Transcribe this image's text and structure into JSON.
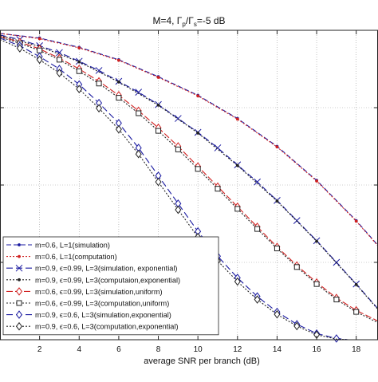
{
  "chart_data": {
    "type": "line",
    "title": "M=4, Γ_p/Γ_s=-5 dB",
    "title_parts": {
      "lead": "M=4, Γ",
      "sub1": "p",
      "mid": "/Γ",
      "sub2": "s",
      "tail": "=-5 dB"
    },
    "xlabel": "average SNR per branch (dB)",
    "ylabel": "",
    "xlim": [
      0,
      19.1
    ],
    "ylim": [
      0,
      1
    ],
    "y_scale_note": "y tick labels not visible in crop; vertical position normalized 0 (bottom) to 1 (top)",
    "x_ticks": [
      2,
      4,
      6,
      8,
      10,
      12,
      14,
      16,
      18
    ],
    "y_gridlines": [
      0.25,
      0.5,
      0.75
    ],
    "grid": true,
    "legend_position": "bottom-left",
    "series": [
      {
        "name": "m=0.6, L=1(simulation)",
        "color": "#1a1aa0",
        "dash": "6,3",
        "marker": "dot",
        "x": [
          0,
          2,
          4,
          6,
          8,
          10,
          12,
          14,
          16,
          18,
          19.1
        ],
        "y": [
          0.99,
          0.975,
          0.945,
          0.905,
          0.85,
          0.79,
          0.715,
          0.625,
          0.515,
          0.385,
          0.305
        ]
      },
      {
        "name": "m=0.6, L=1(computation)",
        "color": "#d02020",
        "dash": "2,2",
        "marker": "dot",
        "x": [
          0,
          2,
          4,
          6,
          8,
          10,
          12,
          14,
          16,
          18,
          19.1
        ],
        "y": [
          0.99,
          0.973,
          0.943,
          0.903,
          0.848,
          0.788,
          0.713,
          0.623,
          0.513,
          0.383,
          0.303
        ]
      },
      {
        "name": "m=0.9, ϵ=0.99, L=3(simulation, exponential)",
        "color": "#1a1aa0",
        "dash": "8,4",
        "marker": "x",
        "x": [
          0,
          1,
          2,
          3,
          4,
          5,
          6,
          7,
          8,
          9,
          10,
          11,
          12,
          13,
          14,
          15,
          16,
          17,
          18,
          19.1
        ],
        "y": [
          0.985,
          0.97,
          0.95,
          0.928,
          0.9,
          0.87,
          0.835,
          0.8,
          0.76,
          0.715,
          0.67,
          0.62,
          0.565,
          0.51,
          0.45,
          0.385,
          0.32,
          0.25,
          0.18,
          0.1
        ]
      },
      {
        "name": "m=0.9, ϵ=0.99, L=3(computaion,exponential)",
        "color": "#222222",
        "dash": "2,2",
        "marker": "dot",
        "x": [
          0,
          2,
          4,
          6,
          8,
          10,
          12,
          14,
          16,
          18,
          19.1
        ],
        "y": [
          0.983,
          0.948,
          0.898,
          0.833,
          0.758,
          0.668,
          0.563,
          0.448,
          0.318,
          0.178,
          0.098
        ]
      },
      {
        "name": "m=0.6, ϵ=0.99, L=3(simulation,uniform)",
        "color": "#d02020",
        "dash": "8,3",
        "marker": "diamond",
        "x": [
          0,
          1,
          2,
          3,
          4,
          5,
          6,
          7,
          8,
          9,
          10,
          11,
          12,
          13,
          14,
          15,
          16,
          17,
          18,
          19.1
        ],
        "y": [
          0.98,
          0.962,
          0.94,
          0.91,
          0.875,
          0.835,
          0.79,
          0.74,
          0.685,
          0.625,
          0.56,
          0.495,
          0.43,
          0.365,
          0.3,
          0.24,
          0.185,
          0.135,
          0.095,
          0.06
        ]
      },
      {
        "name": "m=0.6, ϵ=0.99, L=3(computation,uniform)",
        "color": "#222222",
        "dash": "2,2",
        "marker": "square",
        "x": [
          0,
          1,
          2,
          3,
          4,
          5,
          6,
          7,
          8,
          9,
          10,
          11,
          12,
          13,
          14,
          15,
          16,
          17,
          18,
          19.1
        ],
        "y": [
          0.978,
          0.958,
          0.935,
          0.905,
          0.868,
          0.828,
          0.782,
          0.732,
          0.675,
          0.615,
          0.552,
          0.488,
          0.423,
          0.358,
          0.295,
          0.235,
          0.18,
          0.13,
          0.09,
          0.055
        ]
      },
      {
        "name": "m=0.9, ϵ=0.6, L=3(simulation,exponential)",
        "color": "#1a1aa0",
        "dash": "8,4",
        "marker": "diamond",
        "x": [
          0,
          1,
          2,
          3,
          4,
          5,
          6,
          7,
          8,
          9,
          10,
          11,
          12,
          13,
          14,
          15,
          16,
          17,
          17.6
        ],
        "y": [
          0.975,
          0.95,
          0.915,
          0.875,
          0.825,
          0.765,
          0.7,
          0.62,
          0.53,
          0.44,
          0.35,
          0.27,
          0.2,
          0.14,
          0.09,
          0.05,
          0.02,
          0.004,
          0
        ]
      },
      {
        "name": "m=0.9, ϵ=0.6, L=3(computation,exponential)",
        "color": "#222222",
        "dash": "2,2",
        "marker": "diamond",
        "x": [
          0,
          1,
          2,
          3,
          4,
          5,
          6,
          7,
          8,
          9,
          10,
          11,
          12,
          13,
          14,
          15,
          16,
          17,
          17.6
        ],
        "y": [
          0.97,
          0.942,
          0.905,
          0.862,
          0.81,
          0.748,
          0.68,
          0.6,
          0.51,
          0.42,
          0.332,
          0.255,
          0.188,
          0.13,
          0.082,
          0.044,
          0.016,
          0.002,
          0
        ]
      }
    ]
  }
}
